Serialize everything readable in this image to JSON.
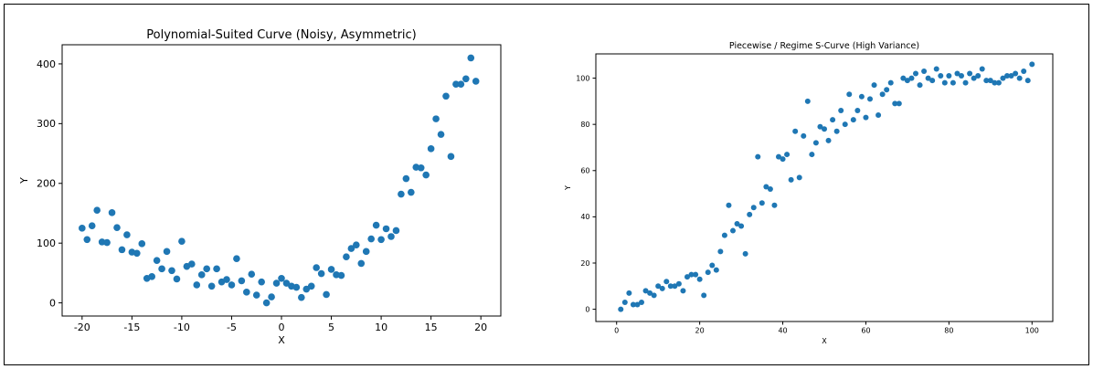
{
  "chart_data": [
    {
      "type": "scatter",
      "title": "Polynomial-Suited Curve (Noisy, Asymmetric)",
      "xlabel": "X",
      "ylabel": "Y",
      "xlim": [
        -22,
        22
      ],
      "ylim": [
        -22,
        432
      ],
      "xticks": [
        -20,
        -15,
        -10,
        -5,
        0,
        5,
        10,
        15,
        20
      ],
      "yticks": [
        0,
        100,
        200,
        300,
        400
      ],
      "grid": false,
      "color": "#1f77b4",
      "points": [
        [
          -20.0,
          125
        ],
        [
          -19.5,
          106
        ],
        [
          -19.0,
          129
        ],
        [
          -18.5,
          155
        ],
        [
          -18.0,
          102
        ],
        [
          -17.5,
          101
        ],
        [
          -17.0,
          151
        ],
        [
          -16.5,
          126
        ],
        [
          -16.0,
          89
        ],
        [
          -15.5,
          114
        ],
        [
          -15.0,
          85
        ],
        [
          -14.5,
          83
        ],
        [
          -14.0,
          99
        ],
        [
          -13.5,
          41
        ],
        [
          -13.0,
          44
        ],
        [
          -12.5,
          71
        ],
        [
          -12.0,
          57
        ],
        [
          -11.5,
          86
        ],
        [
          -11.0,
          54
        ],
        [
          -10.5,
          40
        ],
        [
          -10.0,
          103
        ],
        [
          -9.5,
          61
        ],
        [
          -9.0,
          65
        ],
        [
          -8.5,
          30
        ],
        [
          -8.0,
          47
        ],
        [
          -7.5,
          57
        ],
        [
          -7.0,
          28
        ],
        [
          -6.5,
          57
        ],
        [
          -6.0,
          35
        ],
        [
          -5.5,
          39
        ],
        [
          -5.0,
          30
        ],
        [
          -4.5,
          74
        ],
        [
          -4.0,
          37
        ],
        [
          -3.5,
          18
        ],
        [
          -3.0,
          48
        ],
        [
          -2.5,
          13
        ],
        [
          -2.0,
          35
        ],
        [
          -1.5,
          0
        ],
        [
          -1.0,
          10
        ],
        [
          -0.5,
          33
        ],
        [
          0.0,
          41
        ],
        [
          0.5,
          33
        ],
        [
          1.0,
          28
        ],
        [
          1.5,
          26
        ],
        [
          2.0,
          9
        ],
        [
          2.5,
          23
        ],
        [
          3.0,
          28
        ],
        [
          3.5,
          59
        ],
        [
          4.0,
          49
        ],
        [
          4.5,
          14
        ],
        [
          5.0,
          56
        ],
        [
          5.5,
          47
        ],
        [
          6.0,
          46
        ],
        [
          6.5,
          77
        ],
        [
          7.0,
          91
        ],
        [
          7.5,
          97
        ],
        [
          8.0,
          66
        ],
        [
          8.5,
          86
        ],
        [
          9.0,
          107
        ],
        [
          9.5,
          130
        ],
        [
          10.0,
          106
        ],
        [
          10.5,
          124
        ],
        [
          11.0,
          111
        ],
        [
          11.5,
          121
        ],
        [
          12.0,
          182
        ],
        [
          12.5,
          208
        ],
        [
          13.0,
          185
        ],
        [
          13.5,
          227
        ],
        [
          14.0,
          226
        ],
        [
          14.5,
          214
        ],
        [
          15.0,
          258
        ],
        [
          15.5,
          308
        ],
        [
          16.0,
          282
        ],
        [
          16.5,
          346
        ],
        [
          17.0,
          245
        ],
        [
          17.5,
          366
        ],
        [
          18.0,
          366
        ],
        [
          18.5,
          375
        ],
        [
          19.0,
          410
        ],
        [
          19.5,
          371
        ]
      ]
    },
    {
      "type": "scatter",
      "title": "Piecewise / Regime S-Curve (High Variance)",
      "xlabel": "X",
      "ylabel": "Y",
      "xlim": [
        -5,
        105
      ],
      "ylim": [
        -5.3,
        110.5
      ],
      "xticks": [
        0,
        20,
        40,
        60,
        80,
        100
      ],
      "yticks": [
        0,
        20,
        40,
        60,
        80,
        100
      ],
      "grid": false,
      "color": "#1f77b4",
      "points": [
        [
          1,
          0
        ],
        [
          2,
          3
        ],
        [
          3,
          7
        ],
        [
          4,
          2
        ],
        [
          5,
          2
        ],
        [
          6,
          3
        ],
        [
          7,
          8
        ],
        [
          8,
          7
        ],
        [
          9,
          6
        ],
        [
          10,
          10
        ],
        [
          11,
          9
        ],
        [
          12,
          12
        ],
        [
          13,
          10
        ],
        [
          14,
          10
        ],
        [
          15,
          11
        ],
        [
          16,
          8
        ],
        [
          17,
          14
        ],
        [
          18,
          15
        ],
        [
          19,
          15
        ],
        [
          20,
          13
        ],
        [
          21,
          6
        ],
        [
          22,
          16
        ],
        [
          23,
          19
        ],
        [
          24,
          17
        ],
        [
          25,
          25
        ],
        [
          26,
          32
        ],
        [
          27,
          45
        ],
        [
          28,
          34
        ],
        [
          29,
          37
        ],
        [
          30,
          36
        ],
        [
          31,
          24
        ],
        [
          32,
          41
        ],
        [
          33,
          44
        ],
        [
          34,
          66
        ],
        [
          35,
          46
        ],
        [
          36,
          53
        ],
        [
          37,
          52
        ],
        [
          38,
          45
        ],
        [
          39,
          66
        ],
        [
          40,
          65
        ],
        [
          41,
          67
        ],
        [
          42,
          56
        ],
        [
          43,
          77
        ],
        [
          44,
          57
        ],
        [
          45,
          75
        ],
        [
          46,
          90
        ],
        [
          47,
          67
        ],
        [
          48,
          72
        ],
        [
          49,
          79
        ],
        [
          50,
          78
        ],
        [
          51,
          73
        ],
        [
          52,
          82
        ],
        [
          53,
          77
        ],
        [
          54,
          86
        ],
        [
          55,
          80
        ],
        [
          56,
          93
        ],
        [
          57,
          82
        ],
        [
          58,
          86
        ],
        [
          59,
          92
        ],
        [
          60,
          83
        ],
        [
          61,
          91
        ],
        [
          62,
          97
        ],
        [
          63,
          84
        ],
        [
          64,
          93
        ],
        [
          65,
          95
        ],
        [
          66,
          98
        ],
        [
          67,
          89
        ],
        [
          68,
          89
        ],
        [
          69,
          100
        ],
        [
          70,
          99
        ],
        [
          71,
          100
        ],
        [
          72,
          102
        ],
        [
          73,
          97
        ],
        [
          74,
          103
        ],
        [
          75,
          100
        ],
        [
          76,
          99
        ],
        [
          77,
          104
        ],
        [
          78,
          101
        ],
        [
          79,
          98
        ],
        [
          80,
          101
        ],
        [
          81,
          98
        ],
        [
          82,
          102
        ],
        [
          83,
          101
        ],
        [
          84,
          98
        ],
        [
          85,
          102
        ],
        [
          86,
          100
        ],
        [
          87,
          101
        ],
        [
          88,
          104
        ],
        [
          89,
          99
        ],
        [
          90,
          99
        ],
        [
          91,
          98
        ],
        [
          92,
          98
        ],
        [
          93,
          100
        ],
        [
          94,
          101
        ],
        [
          95,
          101
        ],
        [
          96,
          102
        ],
        [
          97,
          100
        ],
        [
          98,
          103
        ],
        [
          99,
          99
        ],
        [
          100,
          106
        ]
      ]
    }
  ]
}
